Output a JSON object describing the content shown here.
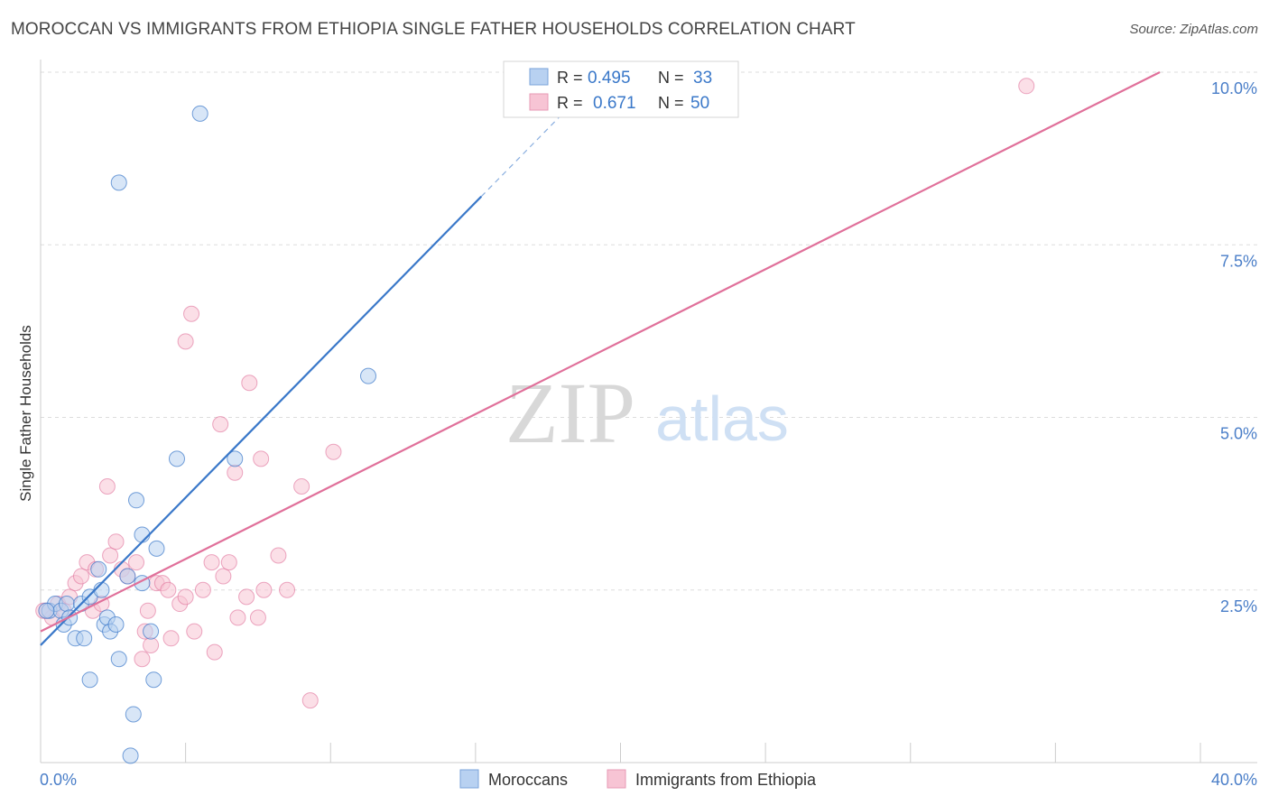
{
  "title": "MOROCCAN VS IMMIGRANTS FROM ETHIOPIA SINGLE FATHER HOUSEHOLDS CORRELATION CHART",
  "source": "Source: ZipAtlas.com",
  "colors": {
    "blue": "#3a78c9",
    "blue_fill": "#b8d1f1",
    "pink": "#e0709a",
    "pink_fill": "#f7c4d4",
    "axis_text": "#4a7ec8"
  },
  "chart_data": {
    "type": "scatter",
    "xlabel": "",
    "ylabel": "Single Father Households",
    "xlim": [
      0,
      40
    ],
    "ylim": [
      0,
      10
    ],
    "x_tick_labels": [
      "0.0%",
      "40.0%"
    ],
    "y_ticks": [
      2.5,
      5.0,
      7.5,
      10.0
    ],
    "y_tick_labels": [
      "2.5%",
      "5.0%",
      "7.5%",
      "10.0%"
    ],
    "legend": {
      "position": "top-center",
      "rows": [
        {
          "r_label": "R =",
          "r_value": "0.495",
          "n_label": "N =",
          "n_value": "33"
        },
        {
          "r_label": "R =",
          "r_value": "0.671",
          "n_label": "N =",
          "n_value": "50"
        }
      ]
    },
    "watermark": {
      "zip": "ZIP",
      "atlas": "atlas"
    },
    "bottom_legend": [
      "Moroccans",
      "Immigrants from Ethiopia"
    ],
    "series": [
      {
        "name": "Moroccans",
        "trend": {
          "x0": 0,
          "y0": 1.7,
          "x1": 15.2,
          "y1": 8.2,
          "dash_to_x": 18.5
        },
        "points": [
          [
            0.3,
            2.2
          ],
          [
            0.5,
            2.3
          ],
          [
            0.7,
            2.2
          ],
          [
            0.9,
            2.3
          ],
          [
            0.8,
            2.0
          ],
          [
            1.0,
            2.1
          ],
          [
            1.2,
            1.8
          ],
          [
            1.4,
            2.3
          ],
          [
            1.5,
            1.8
          ],
          [
            1.7,
            2.4
          ],
          [
            2.0,
            2.8
          ],
          [
            2.1,
            2.5
          ],
          [
            2.2,
            2.0
          ],
          [
            2.3,
            2.1
          ],
          [
            2.4,
            1.9
          ],
          [
            2.6,
            2.0
          ],
          [
            2.7,
            1.5
          ],
          [
            3.0,
            2.7
          ],
          [
            3.3,
            3.8
          ],
          [
            3.5,
            3.3
          ],
          [
            3.8,
            1.9
          ],
          [
            3.9,
            1.2
          ],
          [
            4.0,
            3.1
          ],
          [
            1.7,
            1.2
          ],
          [
            3.2,
            0.7
          ],
          [
            3.1,
            0.1
          ],
          [
            4.7,
            4.4
          ],
          [
            5.5,
            9.4
          ],
          [
            2.7,
            8.4
          ],
          [
            6.7,
            4.4
          ],
          [
            11.3,
            5.6
          ],
          [
            3.5,
            2.6
          ],
          [
            0.2,
            2.2
          ]
        ]
      },
      {
        "name": "Immigrants from Ethiopia",
        "trend": {
          "x0": 0,
          "y0": 1.9,
          "x1": 38.6,
          "y1": 10.0
        },
        "points": [
          [
            0.2,
            2.2
          ],
          [
            0.4,
            2.1
          ],
          [
            0.6,
            2.3
          ],
          [
            0.8,
            2.2
          ],
          [
            1.0,
            2.4
          ],
          [
            1.2,
            2.6
          ],
          [
            1.4,
            2.7
          ],
          [
            1.6,
            2.9
          ],
          [
            1.8,
            2.2
          ],
          [
            1.9,
            2.8
          ],
          [
            2.1,
            2.3
          ],
          [
            2.3,
            4.0
          ],
          [
            2.4,
            3.0
          ],
          [
            2.6,
            3.2
          ],
          [
            2.8,
            2.8
          ],
          [
            3.0,
            2.7
          ],
          [
            3.3,
            2.9
          ],
          [
            3.5,
            1.5
          ],
          [
            3.6,
            1.9
          ],
          [
            3.7,
            2.2
          ],
          [
            3.8,
            1.7
          ],
          [
            4.0,
            2.6
          ],
          [
            4.2,
            2.6
          ],
          [
            4.4,
            2.5
          ],
          [
            4.5,
            1.8
          ],
          [
            4.8,
            2.3
          ],
          [
            5.0,
            2.4
          ],
          [
            5.3,
            1.9
          ],
          [
            5.6,
            2.5
          ],
          [
            5.9,
            2.9
          ],
          [
            6.0,
            1.6
          ],
          [
            6.3,
            2.7
          ],
          [
            6.5,
            2.9
          ],
          [
            6.8,
            2.1
          ],
          [
            7.1,
            2.4
          ],
          [
            7.5,
            2.1
          ],
          [
            7.7,
            2.5
          ],
          [
            8.2,
            3.0
          ],
          [
            8.5,
            2.5
          ],
          [
            9.0,
            4.0
          ],
          [
            10.1,
            4.5
          ],
          [
            9.3,
            0.9
          ],
          [
            5.0,
            6.1
          ],
          [
            5.2,
            6.5
          ],
          [
            6.2,
            4.9
          ],
          [
            7.2,
            5.5
          ],
          [
            6.7,
            4.2
          ],
          [
            7.6,
            4.4
          ],
          [
            34.0,
            9.8
          ],
          [
            0.1,
            2.2
          ]
        ]
      }
    ]
  }
}
